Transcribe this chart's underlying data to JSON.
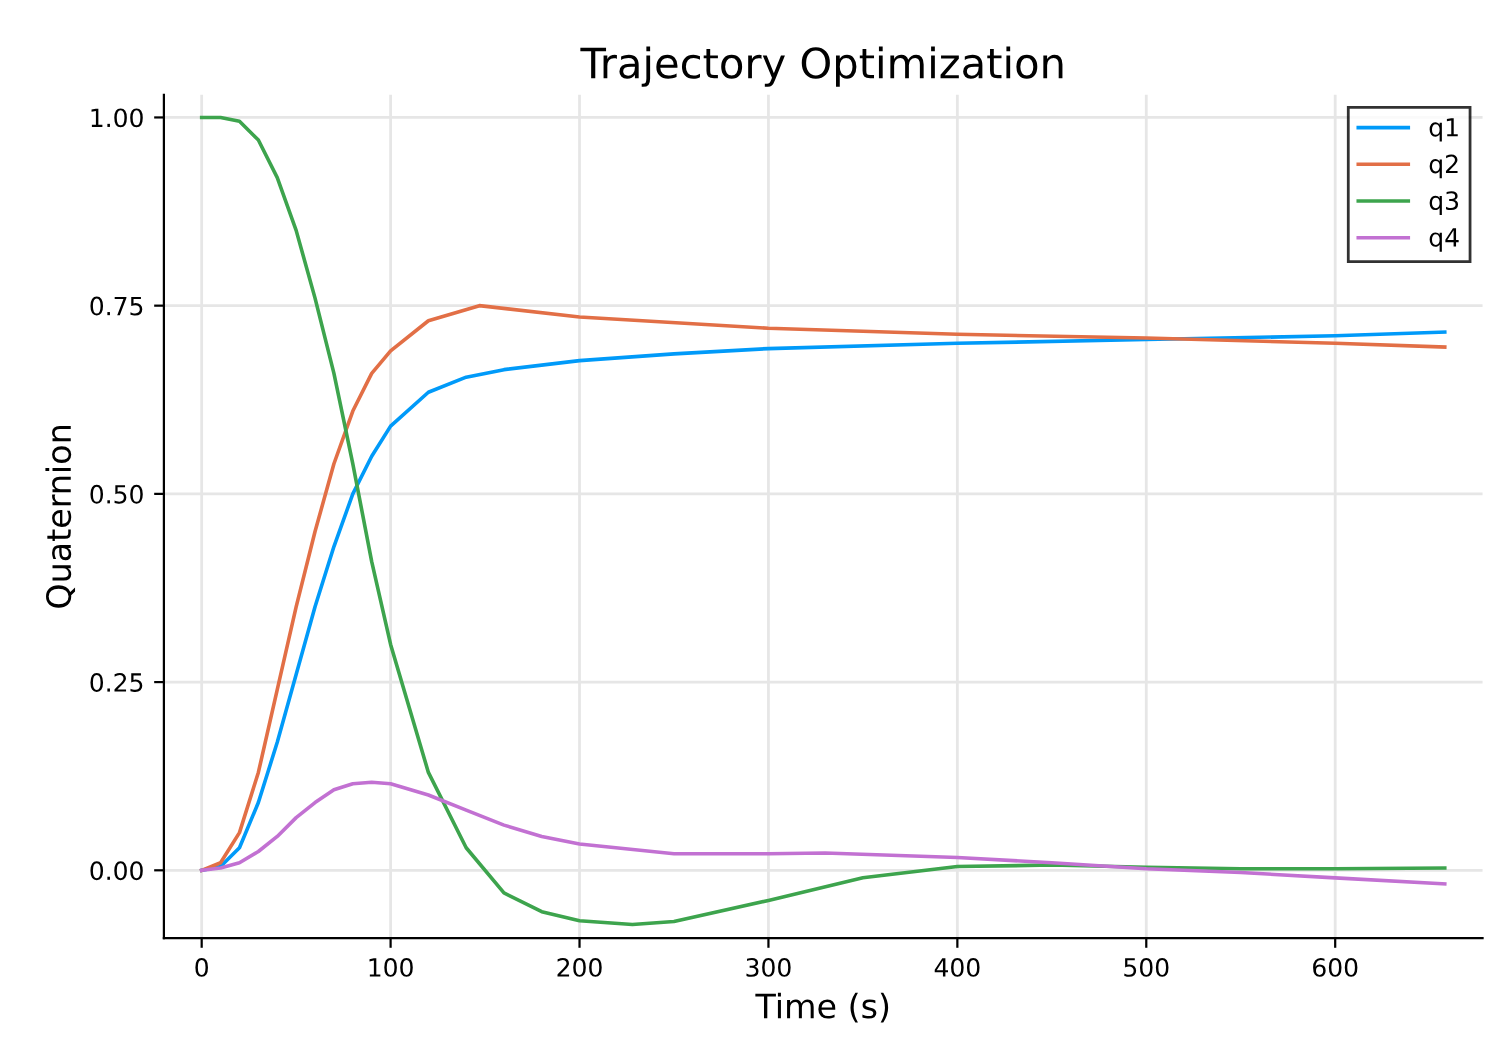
{
  "chart_data": {
    "type": "line",
    "title": "Trajectory Optimization",
    "xlabel": "Time (s)",
    "ylabel": "Quaternion",
    "xlim": [
      -20,
      678
    ],
    "ylim": [
      -0.09,
      1.03
    ],
    "xticks": [
      0,
      100,
      200,
      300,
      400,
      500,
      600
    ],
    "yticks": [
      {
        "value": 0,
        "label": "0.00"
      },
      {
        "value": 0.25,
        "label": "0.25"
      },
      {
        "value": 0.5,
        "label": "0.50"
      },
      {
        "value": 0.75,
        "label": "0.75"
      },
      {
        "value": 1,
        "label": "1.00"
      }
    ],
    "grid": true,
    "legend": "top right",
    "marker": "none",
    "line_style": "solid",
    "series": [
      {
        "name": "q1",
        "color": "#009af9",
        "x": [
          0,
          10,
          20,
          30,
          40,
          50,
          60,
          70,
          80,
          90,
          100,
          120,
          140,
          160,
          200,
          250,
          300,
          400,
          500,
          600,
          658
        ],
        "values": [
          0,
          0.005,
          0.03,
          0.09,
          0.17,
          0.26,
          0.35,
          0.43,
          0.5,
          0.55,
          0.59,
          0.635,
          0.655,
          0.665,
          0.677,
          0.686,
          0.693,
          0.7,
          0.705,
          0.71,
          0.715
        ]
      },
      {
        "name": "q2",
        "color": "#e26f46",
        "x": [
          0,
          10,
          20,
          30,
          40,
          50,
          60,
          70,
          80,
          90,
          100,
          120,
          147,
          200,
          300,
          400,
          500,
          600,
          658
        ],
        "values": [
          0,
          0.01,
          0.05,
          0.13,
          0.24,
          0.35,
          0.45,
          0.54,
          0.61,
          0.66,
          0.69,
          0.73,
          0.75,
          0.735,
          0.72,
          0.712,
          0.707,
          0.7,
          0.695
        ]
      },
      {
        "name": "q3",
        "color": "#3da44d",
        "x": [
          0,
          10,
          20,
          30,
          40,
          50,
          60,
          70,
          80,
          90,
          100,
          120,
          140,
          160,
          180,
          200,
          228,
          250,
          300,
          350,
          400,
          450,
          500,
          550,
          600,
          658
        ],
        "values": [
          1.0,
          1.0,
          0.995,
          0.97,
          0.92,
          0.85,
          0.76,
          0.66,
          0.54,
          0.41,
          0.3,
          0.13,
          0.03,
          -0.03,
          -0.055,
          -0.067,
          -0.072,
          -0.068,
          -0.04,
          -0.01,
          0.005,
          0.007,
          0.004,
          0.002,
          0.002,
          0.003
        ]
      },
      {
        "name": "q4",
        "color": "#c271d2",
        "x": [
          0,
          10,
          20,
          30,
          40,
          50,
          60,
          70,
          80,
          90,
          100,
          120,
          140,
          160,
          180,
          200,
          250,
          300,
          330,
          400,
          450,
          500,
          550,
          600,
          658
        ],
        "values": [
          0,
          0.003,
          0.01,
          0.025,
          0.045,
          0.07,
          0.09,
          0.107,
          0.115,
          0.117,
          0.115,
          0.1,
          0.08,
          0.06,
          0.045,
          0.035,
          0.022,
          0.022,
          0.023,
          0.017,
          0.01,
          0.002,
          -0.003,
          -0.01,
          -0.018
        ]
      }
    ]
  }
}
